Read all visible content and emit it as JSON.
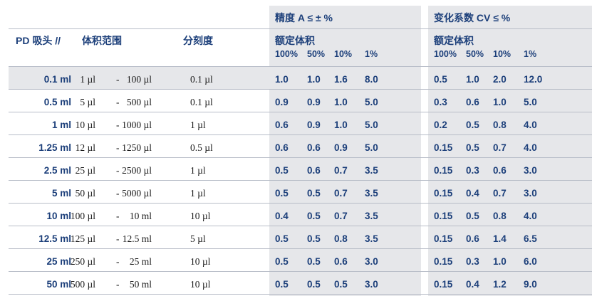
{
  "header": {
    "accuracy_title": "精度 A ≤ ± %",
    "cv_title": "变化系数 CV ≤ %",
    "col_pd": "PD 吸头 //",
    "col_volume": "体积范围",
    "col_graduation": "分刻度",
    "acc_sub": "额定体积",
    "cv_sub": "额定体积",
    "acc_pcts": [
      "100%",
      "50%",
      "10%",
      "1%"
    ],
    "cv_pcts": [
      "100%",
      "50%",
      "10%",
      "1%"
    ]
  },
  "rows": [
    {
      "pd": "0.1 ml",
      "vmin": "1 µl",
      "sep": "-",
      "vmax": "100 µl",
      "grad": "0.1 µl",
      "acc": [
        "1.0",
        "1.0",
        "1.6",
        "8.0"
      ],
      "cv": [
        "0.5",
        "1.0",
        "2.0",
        "12.0"
      ]
    },
    {
      "pd": "0.5 ml",
      "vmin": "5 µl",
      "sep": "-",
      "vmax": "500 µl",
      "grad": "0.1 µl",
      "acc": [
        "0.9",
        "0.9",
        "1.0",
        "5.0"
      ],
      "cv": [
        "0.3",
        "0.6",
        "1.0",
        "5.0"
      ]
    },
    {
      "pd": "1 ml",
      "vmin": "10 µl",
      "sep": "-",
      "vmax": "1000 µl",
      "grad": "1 µl",
      "acc": [
        "0.6",
        "0.9",
        "1.0",
        "5.0"
      ],
      "cv": [
        "0.2",
        "0.5",
        "0.8",
        "4.0"
      ]
    },
    {
      "pd": "1.25 ml",
      "vmin": "12 µl",
      "sep": "-",
      "vmax": "1250 µl",
      "grad": "0.5 µl",
      "acc": [
        "0.6",
        "0.6",
        "0.9",
        "5.0"
      ],
      "cv": [
        "0.15",
        "0.5",
        "0.7",
        "4.0"
      ]
    },
    {
      "pd": "2.5 ml",
      "vmin": "25 µl",
      "sep": "-",
      "vmax": "2500 µl",
      "grad": "1 µl",
      "acc": [
        "0.5",
        "0.6",
        "0.7",
        "3.5"
      ],
      "cv": [
        "0.15",
        "0.3",
        "0.6",
        "3.0"
      ]
    },
    {
      "pd": "5 ml",
      "vmin": "50 µl",
      "sep": "-",
      "vmax": "5000 µl",
      "grad": "1 µl",
      "acc": [
        "0.5",
        "0.5",
        "0.7",
        "3.5"
      ],
      "cv": [
        "0.15",
        "0.4",
        "0.7",
        "3.0"
      ]
    },
    {
      "pd": "10 ml",
      "vmin": "100 µl",
      "sep": "-",
      "vmax": "10 ml",
      "grad": "10 µl",
      "acc": [
        "0.4",
        "0.5",
        "0.7",
        "3.5"
      ],
      "cv": [
        "0.15",
        "0.5",
        "0.8",
        "4.0"
      ]
    },
    {
      "pd": "12.5 ml",
      "vmin": "125 µl",
      "sep": "-",
      "vmax": "12.5 ml",
      "grad": "5 µl",
      "acc": [
        "0.5",
        "0.5",
        "0.8",
        "3.5"
      ],
      "cv": [
        "0.15",
        "0.6",
        "1.4",
        "6.5"
      ]
    },
    {
      "pd": "25 ml",
      "vmin": "250 µl",
      "sep": "-",
      "vmax": "25 ml",
      "grad": "10 µl",
      "acc": [
        "0.5",
        "0.5",
        "0.6",
        "3.0"
      ],
      "cv": [
        "0.15",
        "0.3",
        "1.0",
        "6.0"
      ]
    },
    {
      "pd": "50 ml",
      "vmin": "500 µl",
      "sep": "-",
      "vmax": "50 ml",
      "grad": "10 µl",
      "acc": [
        "0.5",
        "0.5",
        "0.5",
        "3.0"
      ],
      "cv": [
        "0.15",
        "0.4",
        "1.2",
        "9.0"
      ]
    }
  ],
  "colors": {
    "text_blue": "#1c3f7a",
    "shade": "#e6e7ea",
    "rule": "#b8bdc8"
  }
}
